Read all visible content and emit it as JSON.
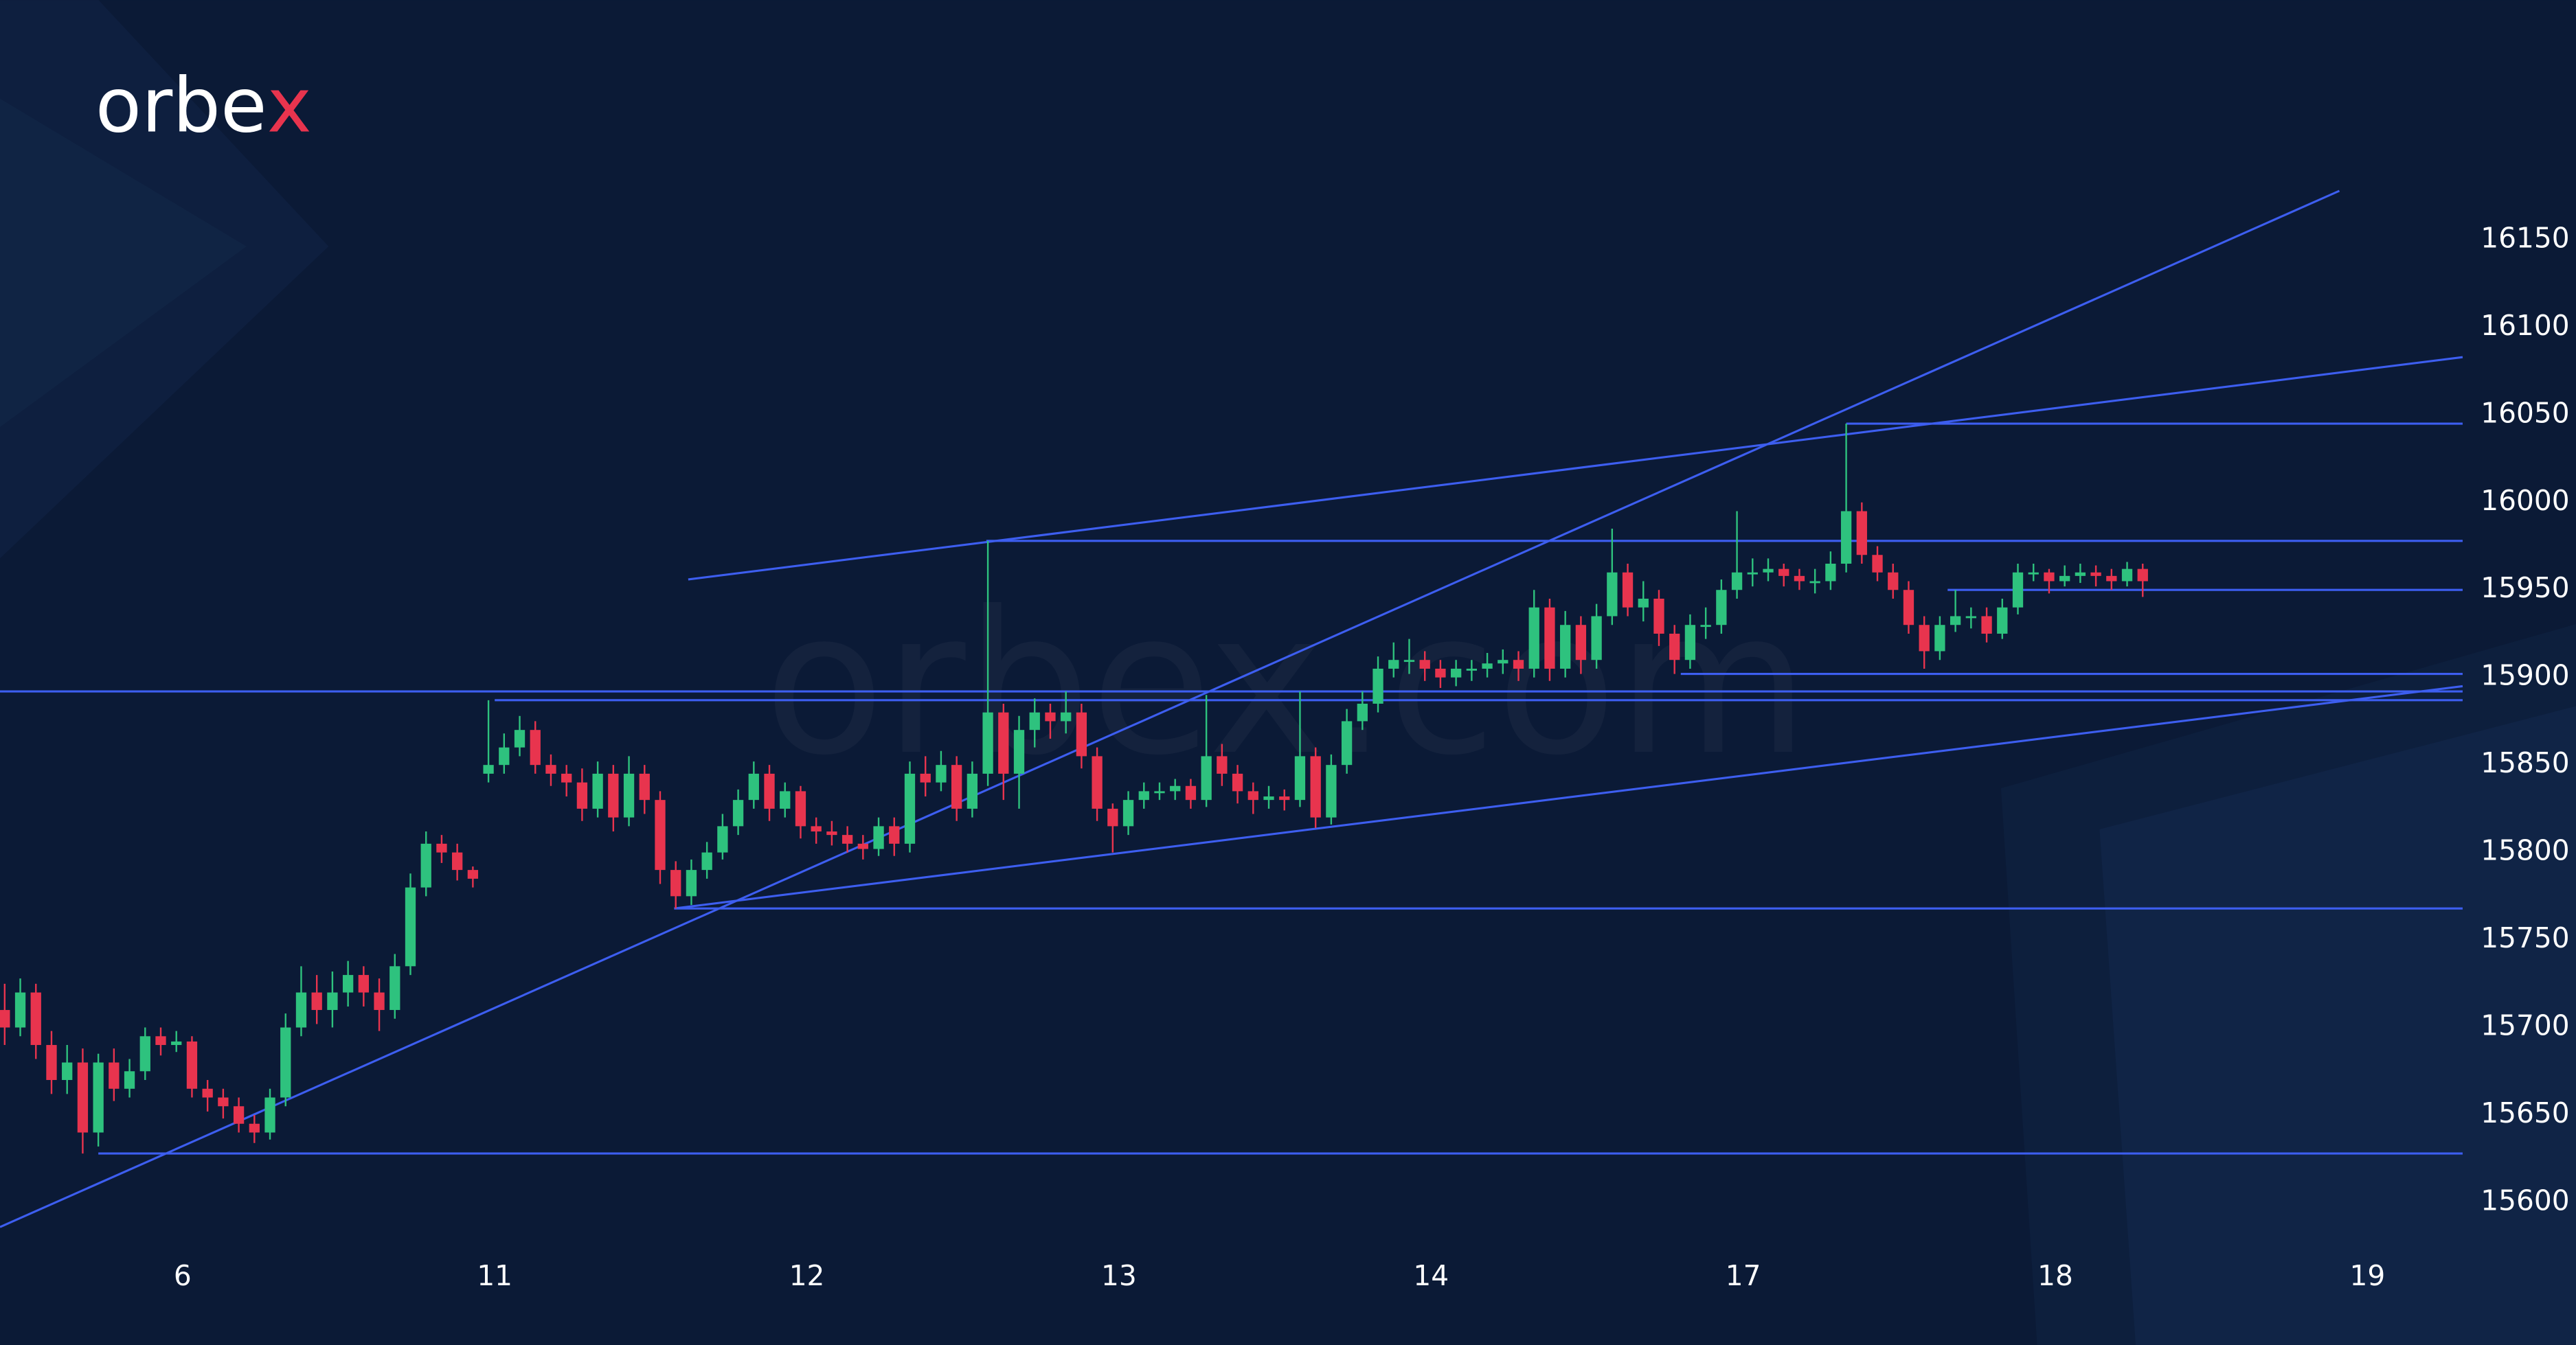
{
  "brand": "orbex",
  "watermark": "orbex.com",
  "chart_data": {
    "type": "candlestick",
    "up_color": "#2ec27e",
    "down_color": "#e8344e",
    "line_color": "#3d5ef0",
    "grid": false,
    "xlim": [
      -0.3,
      157.5
    ],
    "ylim": [
      15574,
      16287
    ],
    "xticks": [
      {
        "value": 11.4,
        "label": "6"
      },
      {
        "value": 31.4,
        "label": "11"
      },
      {
        "value": 51.4,
        "label": "12"
      },
      {
        "value": 71.4,
        "label": "13"
      },
      {
        "value": 91.4,
        "label": "14"
      },
      {
        "value": 111.4,
        "label": "17"
      },
      {
        "value": 131.4,
        "label": "18"
      },
      {
        "value": 151.4,
        "label": "19"
      }
    ],
    "yticks": [
      15600,
      15650,
      15700,
      15750,
      15800,
      15850,
      15900,
      15950,
      16000,
      16050,
      16100,
      16150
    ],
    "candles": {
      "open": [
        15710,
        15700,
        15720,
        15690,
        15670,
        15680,
        15640,
        15680,
        15665,
        15675,
        15695,
        15690,
        15692,
        15665,
        15660,
        15655,
        15645,
        15640,
        15660,
        15700,
        15720,
        15710,
        15720,
        15730,
        15720,
        15710,
        15735,
        15780,
        15805,
        15800,
        15790,
        15845,
        15850,
        15860,
        15870,
        15850,
        15845,
        15840,
        15825,
        15845,
        15820,
        15845,
        15830,
        15790,
        15775,
        15790,
        15800,
        15815,
        15830,
        15845,
        15825,
        15835,
        15815,
        15812,
        15810,
        15805,
        15802,
        15815,
        15805,
        15845,
        15840,
        15850,
        15825,
        15845,
        15880,
        15845,
        15870,
        15880,
        15875,
        15880,
        15855,
        15825,
        15815,
        15830,
        15835,
        15835,
        15838,
        15830,
        15855,
        15845,
        15835,
        15830,
        15832,
        15830,
        15855,
        15820,
        15850,
        15875,
        15885,
        15905,
        15910,
        15910,
        15905,
        15900,
        15905,
        15905,
        15908,
        15910,
        15905,
        15940,
        15905,
        15930,
        15910,
        15935,
        15960,
        15940,
        15945,
        15925,
        15910,
        15930,
        15930,
        15950,
        15960,
        15960,
        15962,
        15958,
        15955,
        15955,
        15965,
        15995,
        15970,
        15960,
        15950,
        15930,
        15915,
        15930,
        15935,
        15935,
        15925,
        15940,
        15960,
        15960,
        15955,
        15958,
        15960,
        15958,
        15955,
        15962
      ],
      "high": [
        15725,
        15728,
        15725,
        15698,
        15690,
        15688,
        15685,
        15688,
        15682,
        15700,
        15700,
        15698,
        15695,
        15670,
        15665,
        15660,
        15650,
        15665,
        15708,
        15735,
        15730,
        15732,
        15738,
        15735,
        15728,
        15742,
        15788,
        15812,
        15810,
        15805,
        15792,
        15887,
        15868,
        15878,
        15875,
        15856,
        15850,
        15848,
        15852,
        15850,
        15855,
        15850,
        15835,
        15795,
        15796,
        15806,
        15822,
        15836,
        15852,
        15850,
        15840,
        15838,
        15820,
        15818,
        15815,
        15810,
        15820,
        15820,
        15852,
        15855,
        15858,
        15855,
        15852,
        15978,
        15885,
        15878,
        15888,
        15885,
        15892,
        15885,
        15860,
        15828,
        15835,
        15840,
        15840,
        15842,
        15842,
        15890,
        15862,
        15850,
        15840,
        15838,
        15836,
        15892,
        15860,
        15856,
        15882,
        15892,
        15912,
        15920,
        15922,
        15915,
        15910,
        15910,
        15910,
        15914,
        15916,
        15915,
        15950,
        15945,
        15938,
        15935,
        15942,
        15985,
        15965,
        15955,
        15950,
        15930,
        15936,
        15940,
        15956,
        15995,
        15968,
        15968,
        15965,
        15962,
        15962,
        15972,
        16045,
        16000,
        15975,
        15965,
        15955,
        15935,
        15935,
        15950,
        15940,
        15940,
        15945,
        15965,
        15965,
        15962,
        15964,
        15965,
        15964,
        15962,
        15966,
        15965
      ],
      "low": [
        15690,
        15695,
        15682,
        15662,
        15662,
        15628,
        15632,
        15658,
        15660,
        15670,
        15684,
        15686,
        15660,
        15652,
        15648,
        15640,
        15634,
        15636,
        15655,
        15695,
        15702,
        15700,
        15712,
        15712,
        15698,
        15705,
        15730,
        15775,
        15794,
        15784,
        15780,
        15840,
        15845,
        15855,
        15845,
        15838,
        15832,
        15818,
        15820,
        15812,
        15815,
        15822,
        15782,
        15768,
        15770,
        15785,
        15796,
        15810,
        15825,
        15818,
        15820,
        15808,
        15805,
        15804,
        15800,
        15796,
        15798,
        15798,
        15800,
        15832,
        15835,
        15818,
        15820,
        15838,
        15830,
        15825,
        15860,
        15865,
        15868,
        15848,
        15818,
        15800,
        15810,
        15825,
        15830,
        15830,
        15825,
        15826,
        15838,
        15828,
        15822,
        15825,
        15824,
        15826,
        15814,
        15816,
        15845,
        15870,
        15880,
        15900,
        15902,
        15898,
        15894,
        15895,
        15898,
        15900,
        15902,
        15898,
        15900,
        15898,
        15900,
        15902,
        15905,
        15930,
        15935,
        15932,
        15918,
        15902,
        15905,
        15922,
        15925,
        15945,
        15952,
        15955,
        15952,
        15950,
        15948,
        15950,
        15960,
        15965,
        15955,
        15945,
        15925,
        15905,
        15910,
        15926,
        15928,
        15920,
        15922,
        15936,
        15955,
        15948,
        15952,
        15954,
        15952,
        15950,
        15952,
        15946
      ],
      "close": [
        15700,
        15720,
        15690,
        15670,
        15680,
        15640,
        15680,
        15665,
        15675,
        15695,
        15690,
        15692,
        15665,
        15660,
        15655,
        15645,
        15640,
        15660,
        15700,
        15720,
        15710,
        15720,
        15730,
        15720,
        15710,
        15735,
        15780,
        15805,
        15800,
        15790,
        15785,
        15850,
        15860,
        15870,
        15850,
        15845,
        15840,
        15825,
        15845,
        15820,
        15845,
        15830,
        15790,
        15775,
        15790,
        15800,
        15815,
        15830,
        15845,
        15825,
        15835,
        15815,
        15812,
        15810,
        15805,
        15802,
        15815,
        15805,
        15845,
        15840,
        15850,
        15825,
        15845,
        15880,
        15845,
        15870,
        15880,
        15875,
        15880,
        15855,
        15825,
        15815,
        15830,
        15835,
        15835,
        15838,
        15830,
        15855,
        15845,
        15835,
        15830,
        15832,
        15830,
        15855,
        15820,
        15850,
        15875,
        15885,
        15905,
        15910,
        15910,
        15905,
        15900,
        15905,
        15905,
        15908,
        15910,
        15905,
        15940,
        15905,
        15930,
        15910,
        15935,
        15960,
        15940,
        15945,
        15925,
        15910,
        15930,
        15930,
        15950,
        15960,
        15960,
        15962,
        15958,
        15955,
        15955,
        15965,
        15995,
        15970,
        15960,
        15950,
        15930,
        15915,
        15930,
        15935,
        15935,
        15925,
        15940,
        15960,
        15960,
        15955,
        15958,
        15960,
        15958,
        15955,
        15962,
        15955
      ]
    },
    "levels": [
      {
        "value": 15628,
        "x_start": 6
      },
      {
        "value": 15768,
        "x_start": 42.9
      },
      {
        "value": 15887,
        "x_start": 31.4
      },
      {
        "value": 15892,
        "x_start": -0.3
      },
      {
        "value": 15902,
        "x_start": 107.4
      },
      {
        "value": 15950,
        "x_start": 124.5
      },
      {
        "value": 15978,
        "x_start": 62.9
      },
      {
        "value": 16045,
        "x_start": 118
      }
    ],
    "trendlines": [
      {
        "x": [
          -0.3,
          149.6
        ],
        "y": [
          15586,
          16178
        ]
      },
      {
        "x": [
          43.8,
          157.5
        ],
        "y": [
          15956,
          16083
        ]
      },
      {
        "x": [
          42.9,
          157.5
        ],
        "y": [
          15768,
          15895
        ]
      }
    ]
  }
}
